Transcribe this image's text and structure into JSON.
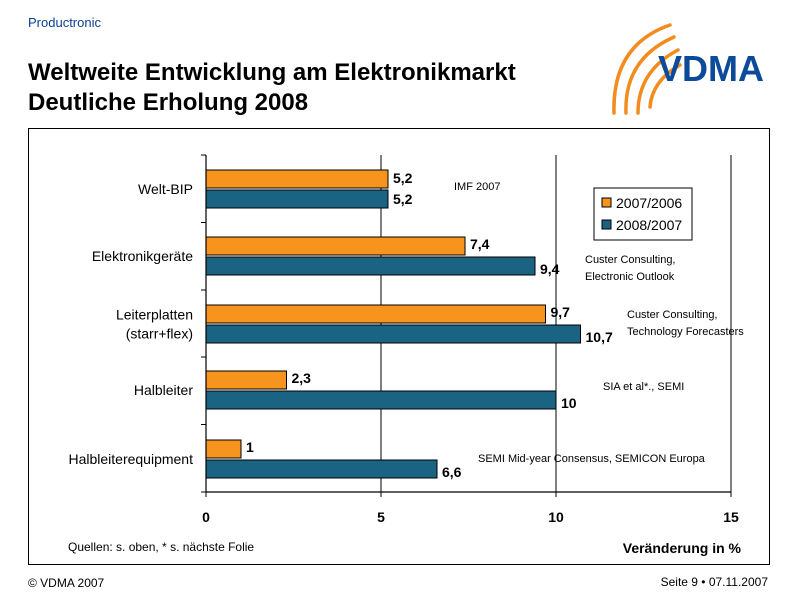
{
  "header": {
    "top_label": "Productronic",
    "title_line1": "Weltweite Entwicklung am Elektronikmarkt",
    "title_line2": "Deutliche Erholung 2008",
    "logo_text": "VDMA"
  },
  "colors": {
    "series1": "#f7941d",
    "series2": "#1a6382",
    "logo_blue": "#0c4a9a",
    "logo_orange": "#f28c1e"
  },
  "chart_data": {
    "type": "bar",
    "orientation": "horizontal",
    "categories": [
      [
        "Welt-BIP"
      ],
      [
        "Elektronikgeräte"
      ],
      [
        "Leiterplatten",
        "(starr+flex)"
      ],
      [
        "Halbleiter"
      ],
      [
        "Halbleiterequipment"
      ]
    ],
    "series": [
      {
        "name": "2007/2006",
        "values": [
          5.2,
          7.4,
          9.7,
          2.3,
          1
        ],
        "labels": [
          "5,2",
          "7,4",
          "9,7",
          "2,3",
          "1"
        ]
      },
      {
        "name": "2008/2007",
        "values": [
          5.2,
          9.4,
          10.7,
          10,
          6.6
        ],
        "labels": [
          "5,2",
          "9,4",
          "10,7",
          "10",
          "6,6"
        ]
      }
    ],
    "xlim": [
      0,
      15
    ],
    "xticks": [
      0,
      5,
      10,
      15
    ],
    "xlabel": "Veränderung in %",
    "legend_position": "top-right",
    "annotations": [
      {
        "category_index": 0,
        "lines": [
          "IMF 2007"
        ]
      },
      {
        "category_index": 1,
        "lines": [
          "Custer Consulting,",
          "Electronic Outlook"
        ]
      },
      {
        "category_index": 2,
        "lines": [
          "Custer Consulting,",
          "Technology Forecasters"
        ]
      },
      {
        "category_index": 3,
        "lines": [
          "SIA et al*., SEMI"
        ]
      },
      {
        "category_index": 4,
        "lines": [
          "SEMI Mid-year Consensus, SEMICON Europa"
        ]
      }
    ],
    "source_note": "Quellen: s. oben, * s. nächste Folie"
  },
  "footer": {
    "copyright": "© VDMA 2007",
    "page": "Seite 9 • 07.11.2007"
  }
}
